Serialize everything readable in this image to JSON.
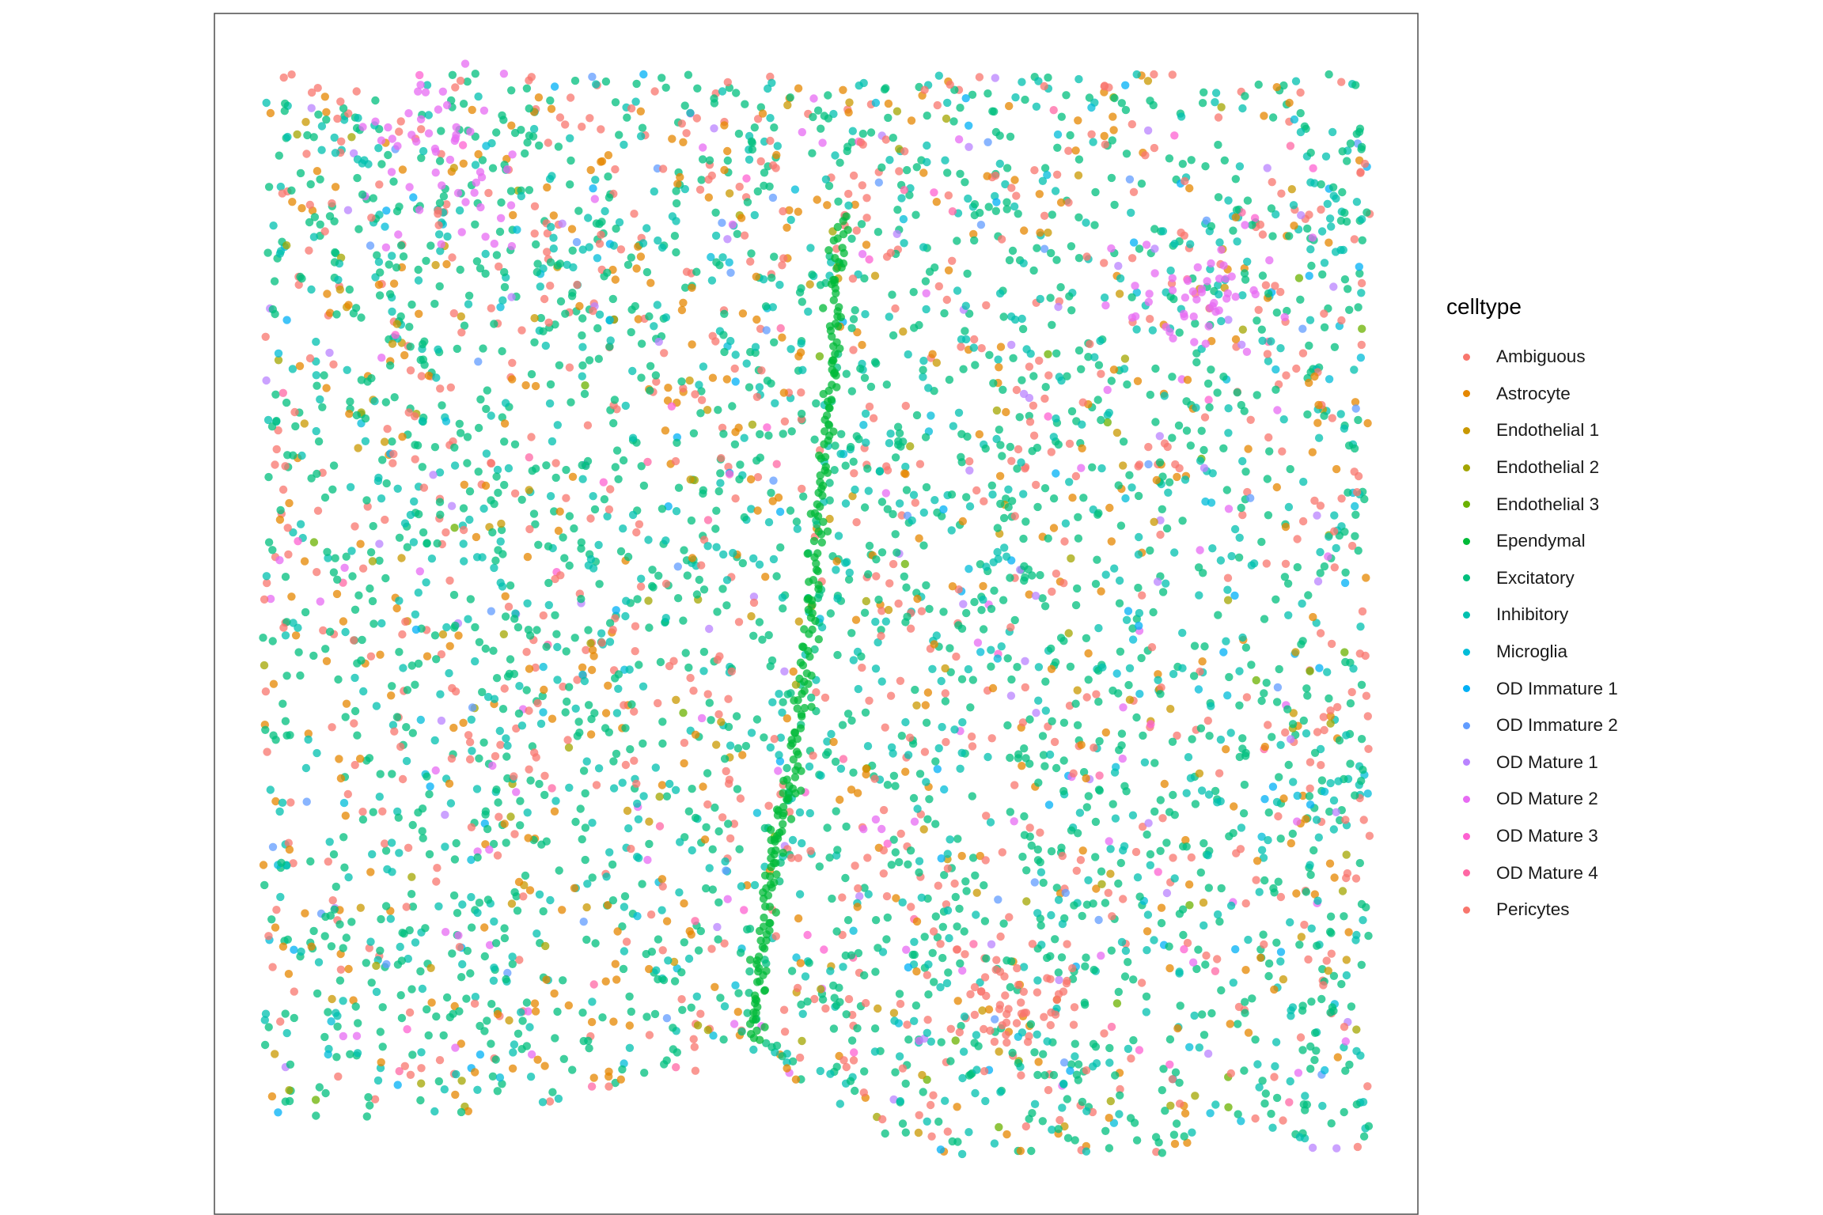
{
  "chart_data": {
    "type": "scatter",
    "title": "",
    "xlabel": "",
    "ylabel": "",
    "axes_visible": false,
    "grid": false,
    "point_alpha": 0.75,
    "legend": {
      "title": "celltype",
      "position": "right",
      "entries": [
        {
          "label": "Ambiguous",
          "color": "#F8766D"
        },
        {
          "label": "Astrocyte",
          "color": "#E58700"
        },
        {
          "label": "Endothelial 1",
          "color": "#C99800"
        },
        {
          "label": "Endothelial 2",
          "color": "#A3A500"
        },
        {
          "label": "Endothelial 3",
          "color": "#6BB100"
        },
        {
          "label": "Ependymal",
          "color": "#00BA38"
        },
        {
          "label": "Excitatory",
          "color": "#00BF7D"
        },
        {
          "label": "Inhibitory",
          "color": "#00C0AF"
        },
        {
          "label": "Microglia",
          "color": "#00BCD8"
        },
        {
          "label": "OD Immature 1",
          "color": "#00B0F6"
        },
        {
          "label": "OD Immature 2",
          "color": "#619CFF"
        },
        {
          "label": "OD Mature 1",
          "color": "#B983FF"
        },
        {
          "label": "OD Mature 2",
          "color": "#E76BF3"
        },
        {
          "label": "OD Mature 3",
          "color": "#FD61D1"
        },
        {
          "label": "OD Mature 4",
          "color": "#FF67A4"
        },
        {
          "label": "Pericytes",
          "color": "#F8766D"
        }
      ]
    },
    "xlim": [
      0,
      1
    ],
    "ylim": [
      0,
      1
    ],
    "data_extent": {
      "x": [
        0.04,
        0.96
      ],
      "y": [
        0.05,
        0.95
      ]
    },
    "region_shape": {
      "top_y": 0.95,
      "left_bottom_y": 0.08,
      "right_bottom_y": 0.05,
      "notch_x": 0.44,
      "notch_bottom_y": 0.14
    },
    "ependymal_ridge": [
      {
        "x": 0.52,
        "y": 0.83
      },
      {
        "x": 0.515,
        "y": 0.74
      },
      {
        "x": 0.51,
        "y": 0.65
      },
      {
        "x": 0.5,
        "y": 0.55
      },
      {
        "x": 0.49,
        "y": 0.45
      },
      {
        "x": 0.48,
        "y": 0.36
      },
      {
        "x": 0.465,
        "y": 0.3
      },
      {
        "x": 0.455,
        "y": 0.22
      },
      {
        "x": 0.45,
        "y": 0.14
      }
    ],
    "point_clusters": [
      {
        "type": "OD Mature 2",
        "x": 0.2,
        "y": 0.88,
        "spread": 0.06
      },
      {
        "type": "OD Mature 2",
        "x": 0.82,
        "y": 0.77,
        "spread": 0.05
      },
      {
        "type": "Pericytes",
        "x": 0.66,
        "y": 0.18,
        "spread": 0.04
      }
    ],
    "approx_point_count": 4500
  }
}
